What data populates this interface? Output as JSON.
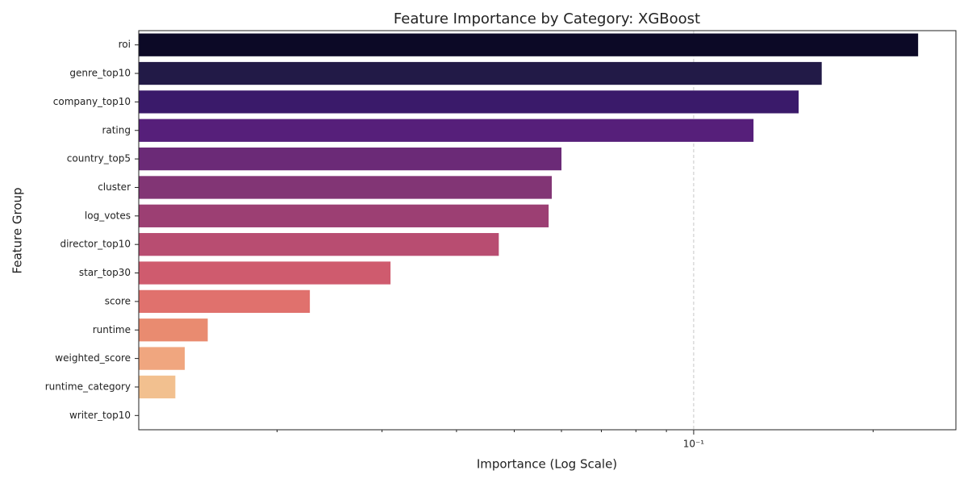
{
  "chart_data": {
    "type": "barh",
    "title": "Feature Importance by Category: XGBoost",
    "xlabel": "Importance (Log Scale)",
    "ylabel": "Feature Group",
    "categories": [
      "roi",
      "genre_top10",
      "company_top10",
      "rating",
      "country_top5",
      "cluster",
      "log_votes",
      "director_top10",
      "star_top30",
      "score",
      "runtime",
      "weighted_score",
      "runtime_category",
      "writer_top10"
    ],
    "values": [
      0.238,
      0.164,
      0.15,
      0.126,
      0.06,
      0.0578,
      0.0571,
      0.0471,
      0.031,
      0.0227,
      0.0153,
      0.014,
      0.0135,
      null
    ],
    "colors": [
      "#0c0926",
      "#221a47",
      "#3a1a6a",
      "#561f7a",
      "#6b2a77",
      "#823575",
      "#9c3f73",
      "#b84d71",
      "#cf5b6e",
      "#e0716d",
      "#e98b70",
      "#f0a67f",
      "#f2c08f",
      "#f6d8a6"
    ],
    "xscale": "log",
    "xlim": [
      0.01172,
      0.2754
    ],
    "xticks": [
      {
        "value": 0.1,
        "label": "10⁻¹"
      }
    ],
    "xminorticks": [
      0.02,
      0.03,
      0.04,
      0.05,
      0.06,
      0.07,
      0.08,
      0.09,
      0.2
    ],
    "grid": true
  }
}
